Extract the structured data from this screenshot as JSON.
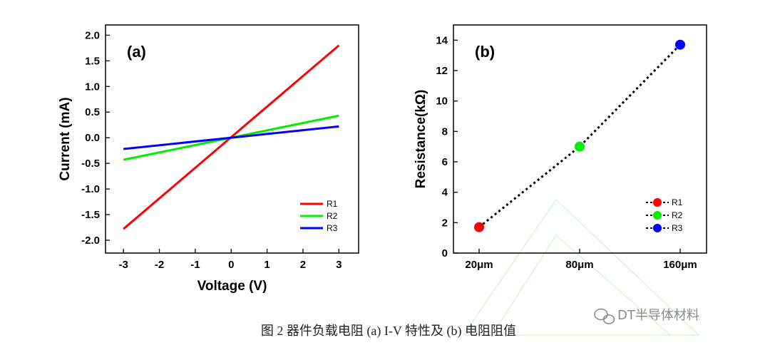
{
  "chart_data": [
    {
      "panel": "(a)",
      "type": "line",
      "xlabel": "Voltage (V)",
      "ylabel": "Current (mA)",
      "xlim": [
        -3.5,
        3.55
      ],
      "ylim": [
        -2.25,
        2.2
      ],
      "xticks": [
        -3,
        -2,
        -1,
        0,
        1,
        2,
        3
      ],
      "yticks": [
        -2.0,
        -1.5,
        -1.0,
        -0.5,
        0.0,
        0.5,
        1.0,
        1.5,
        2.0
      ],
      "legend_position": "bottom-right",
      "series": [
        {
          "name": "R1",
          "color": "#ff0000",
          "x": [
            -3,
            3
          ],
          "y": [
            -1.78,
            1.8
          ]
        },
        {
          "name": "R2",
          "color": "#00ee00",
          "x": [
            -3,
            3
          ],
          "y": [
            -0.43,
            0.43
          ]
        },
        {
          "name": "R3",
          "color": "#0000ff",
          "x": [
            -3,
            3
          ],
          "y": [
            -0.22,
            0.22
          ]
        }
      ]
    },
    {
      "panel": "(b)",
      "type": "scatter",
      "xlabel": "",
      "ylabel": "Resistance(kΩ)",
      "categories": [
        "20μm",
        "80μm",
        "160μm"
      ],
      "ylim": [
        0,
        15
      ],
      "yticks": [
        0,
        2,
        4,
        6,
        8,
        10,
        12,
        14
      ],
      "legend_position": "bottom-right",
      "trend_line": "dotted",
      "series": [
        {
          "name": "R1",
          "color": "#ff0000",
          "category": "20μm",
          "value": 1.7
        },
        {
          "name": "R2",
          "color": "#00ee00",
          "category": "80μm",
          "value": 7.0
        },
        {
          "name": "R3",
          "color": "#0000ff",
          "category": "160μm",
          "value": 13.7
        }
      ]
    }
  ],
  "caption": "图 2  器件负载电阻  (a) I-V 特性及  (b)  电阻阻值",
  "watermark": "DT半导体材料"
}
